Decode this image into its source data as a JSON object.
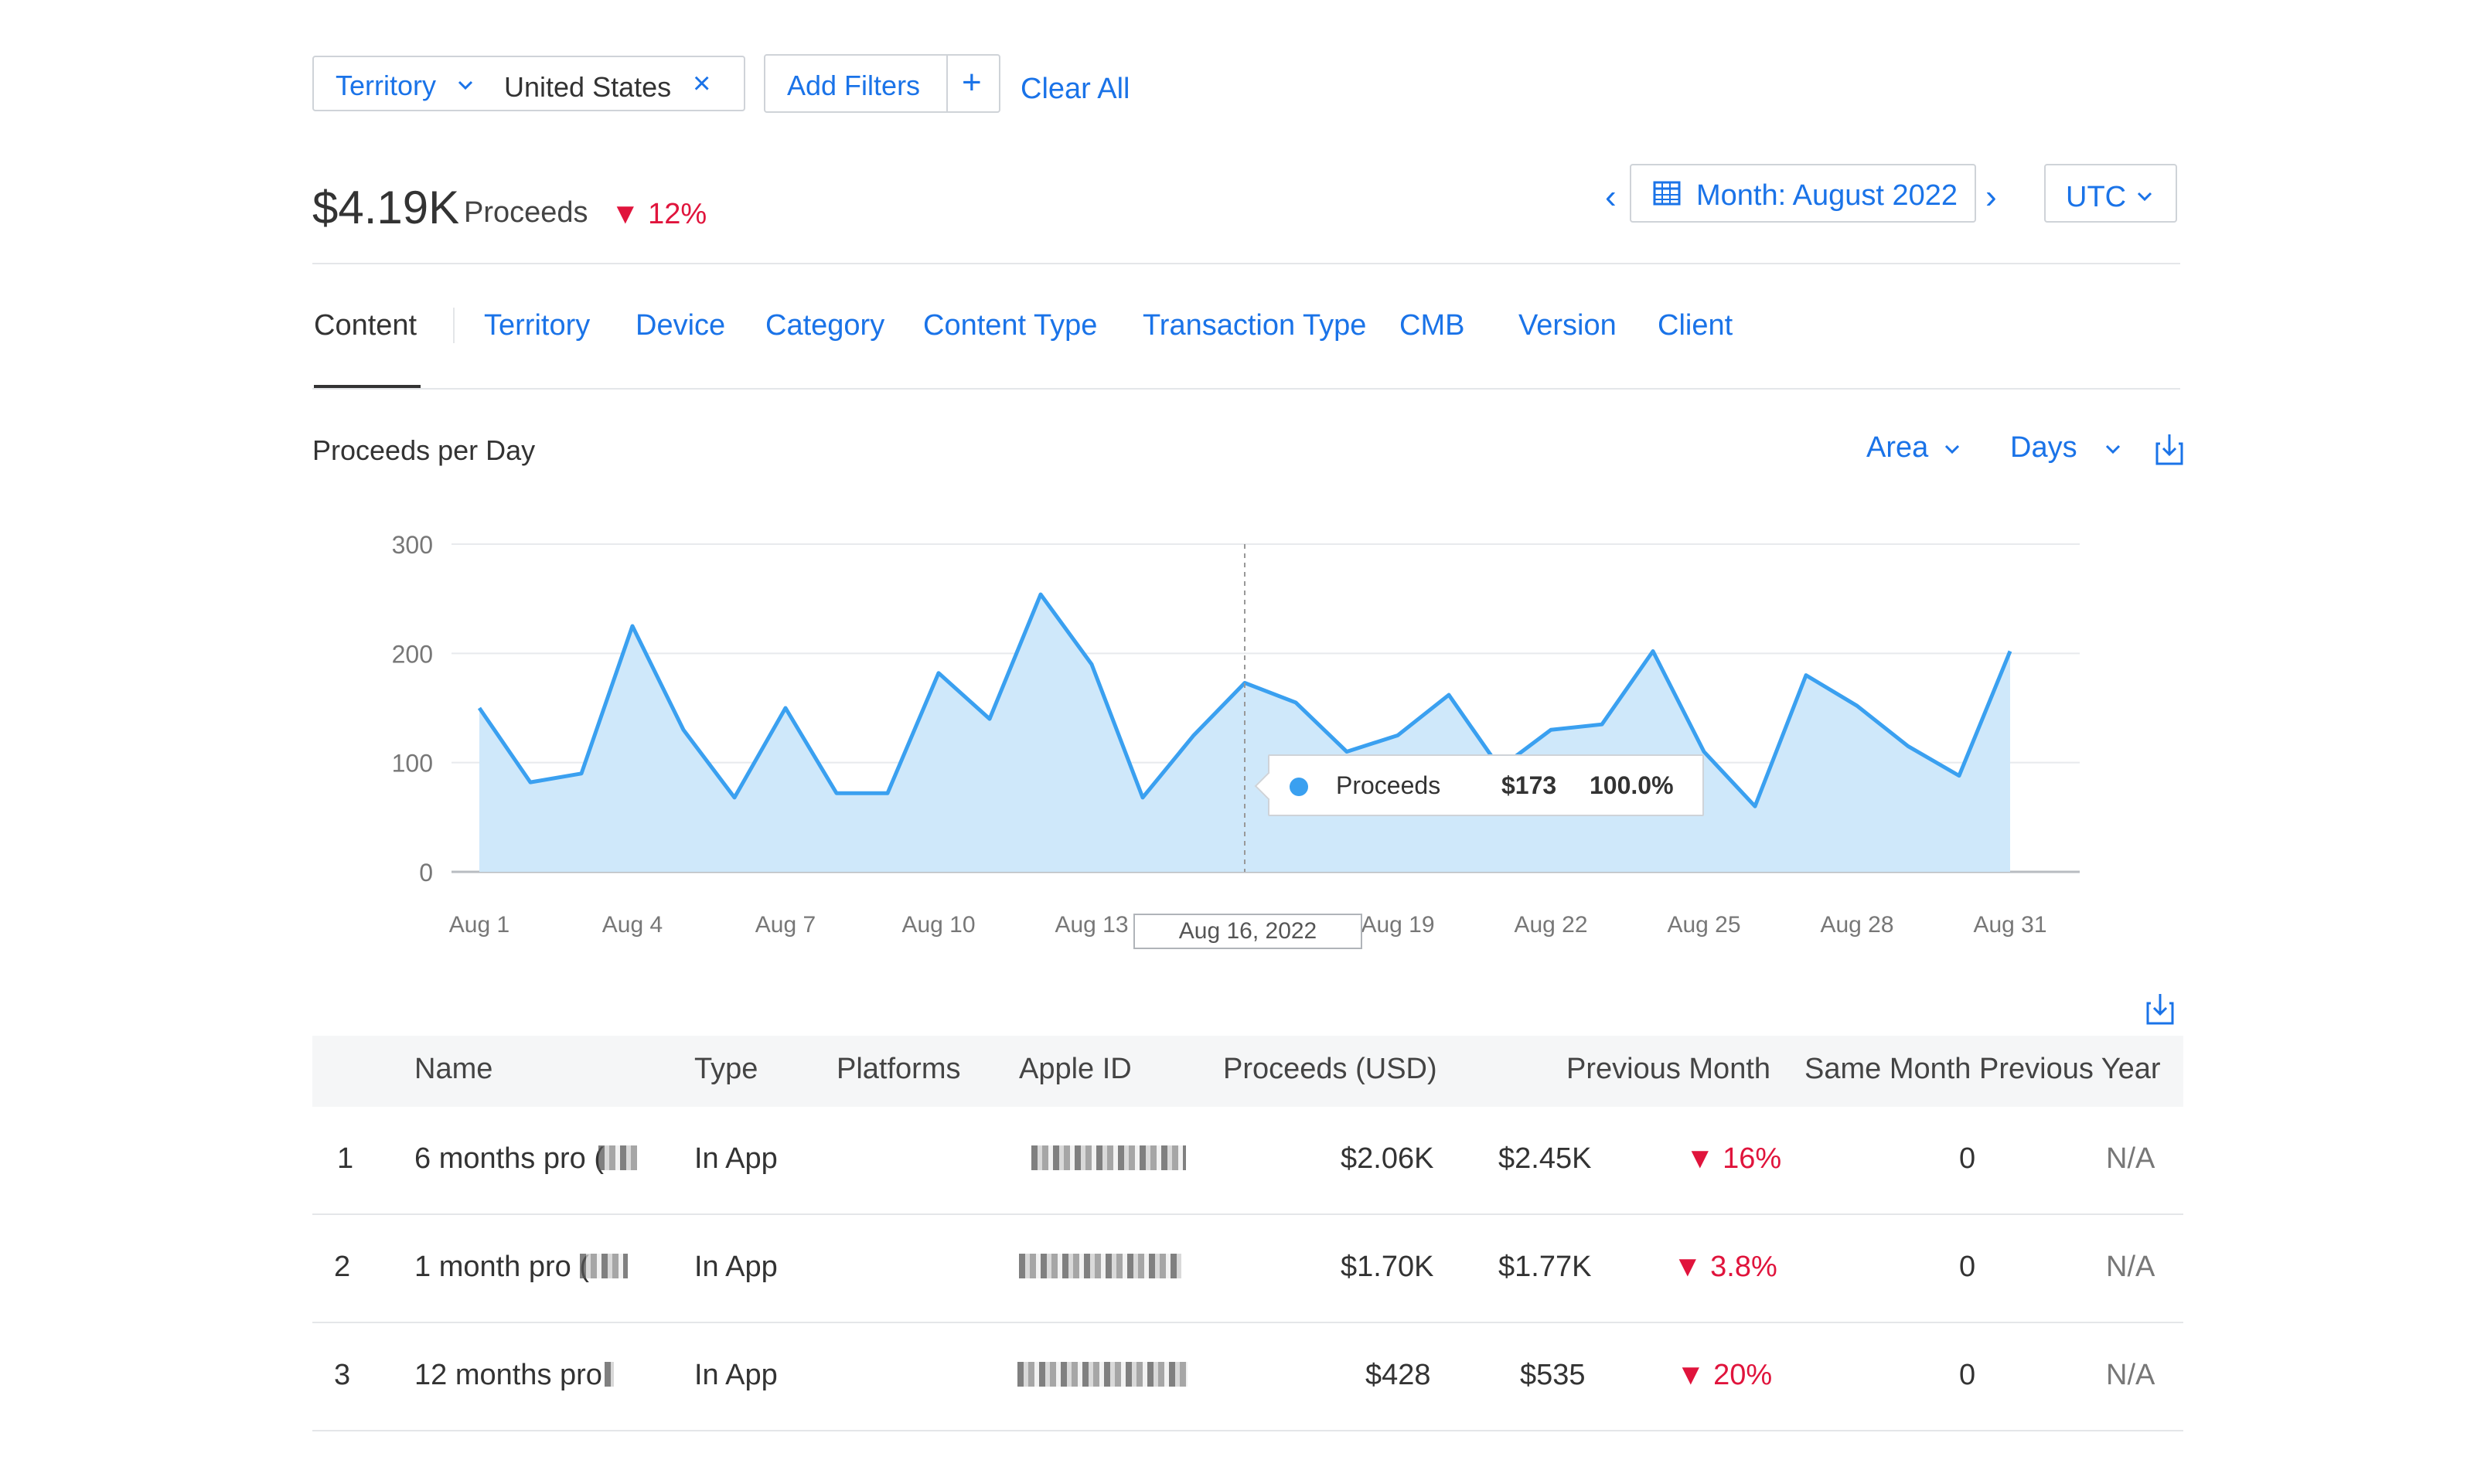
{
  "filters": {
    "territory_label": "Territory",
    "territory_value": "United States",
    "remove_symbol": "×",
    "add_filters_label": "Add Filters",
    "add_symbol": "+",
    "clear_all_label": "Clear All"
  },
  "summary": {
    "value": "$4.19K",
    "label": "Proceeds",
    "delta": "▼ 12%"
  },
  "period": {
    "prev_symbol": "‹",
    "month_label": "Month: August 2022",
    "next_symbol": "›",
    "timezone": "UTC"
  },
  "tabs": [
    {
      "label": "Content",
      "active": true
    },
    {
      "label": "Territory"
    },
    {
      "label": "Device"
    },
    {
      "label": "Category"
    },
    {
      "label": "Content Type"
    },
    {
      "label": "Transaction Type"
    },
    {
      "label": "CMB"
    },
    {
      "label": "Version"
    },
    {
      "label": "Client"
    }
  ],
  "chart_section": {
    "title": "Proceeds per Day",
    "chart_type_label": "Area",
    "granularity_label": "Days"
  },
  "tooltip": {
    "series": "Proceeds",
    "value": "$173",
    "percent": "100.0%"
  },
  "hover_date": "Aug 16, 2022",
  "chart_data": {
    "type": "area",
    "title": "Proceeds per Day",
    "x": [
      "Aug 1",
      "Aug 2",
      "Aug 3",
      "Aug 4",
      "Aug 5",
      "Aug 6",
      "Aug 7",
      "Aug 8",
      "Aug 9",
      "Aug 10",
      "Aug 11",
      "Aug 12",
      "Aug 13",
      "Aug 14",
      "Aug 15",
      "Aug 16",
      "Aug 17",
      "Aug 18",
      "Aug 19",
      "Aug 20",
      "Aug 21",
      "Aug 22",
      "Aug 23",
      "Aug 24",
      "Aug 25",
      "Aug 26",
      "Aug 27",
      "Aug 28",
      "Aug 29",
      "Aug 30",
      "Aug 31"
    ],
    "x_tick_labels": [
      "Aug 1",
      "Aug 4",
      "Aug 7",
      "Aug 10",
      "Aug 13",
      "Aug 19",
      "Aug 22",
      "Aug 25",
      "Aug 28",
      "Aug 31"
    ],
    "series": [
      {
        "name": "Proceeds",
        "values": [
          150,
          82,
          90,
          225,
          130,
          68,
          150,
          72,
          72,
          182,
          140,
          254,
          190,
          68,
          125,
          173,
          155,
          110,
          125,
          162,
          95,
          130,
          135,
          202,
          110,
          60,
          180,
          152,
          115,
          88,
          202
        ]
      }
    ],
    "ylim": [
      0,
      300
    ],
    "y_ticks": [
      0,
      100,
      200,
      300
    ],
    "grid": true,
    "colors": {
      "line": "#3aa0f0",
      "fill": "#cfe8fa"
    }
  },
  "table": {
    "columns": [
      "Name",
      "Type",
      "Platforms",
      "Apple ID",
      "Proceeds (USD)",
      "Previous Month",
      "Same Month Previous Year"
    ],
    "rows": [
      {
        "rank": "1",
        "name": "6 months pro (",
        "type": "In App",
        "proceeds": "$2.06K",
        "prev_month": "$2.45K",
        "prev_month_delta": "▼ 16%",
        "prev_year": "0",
        "prev_year_delta": "N/A"
      },
      {
        "rank": "2",
        "name": "1 month pro (",
        "type": "In App",
        "proceeds": "$1.70K",
        "prev_month": "$1.77K",
        "prev_month_delta": "▼ 3.8%",
        "prev_year": "0",
        "prev_year_delta": "N/A"
      },
      {
        "rank": "3",
        "name": "12 months pro",
        "type": "In App",
        "proceeds": "$428",
        "prev_month": "$535",
        "prev_month_delta": "▼ 20%",
        "prev_year": "0",
        "prev_year_delta": "N/A"
      }
    ]
  }
}
